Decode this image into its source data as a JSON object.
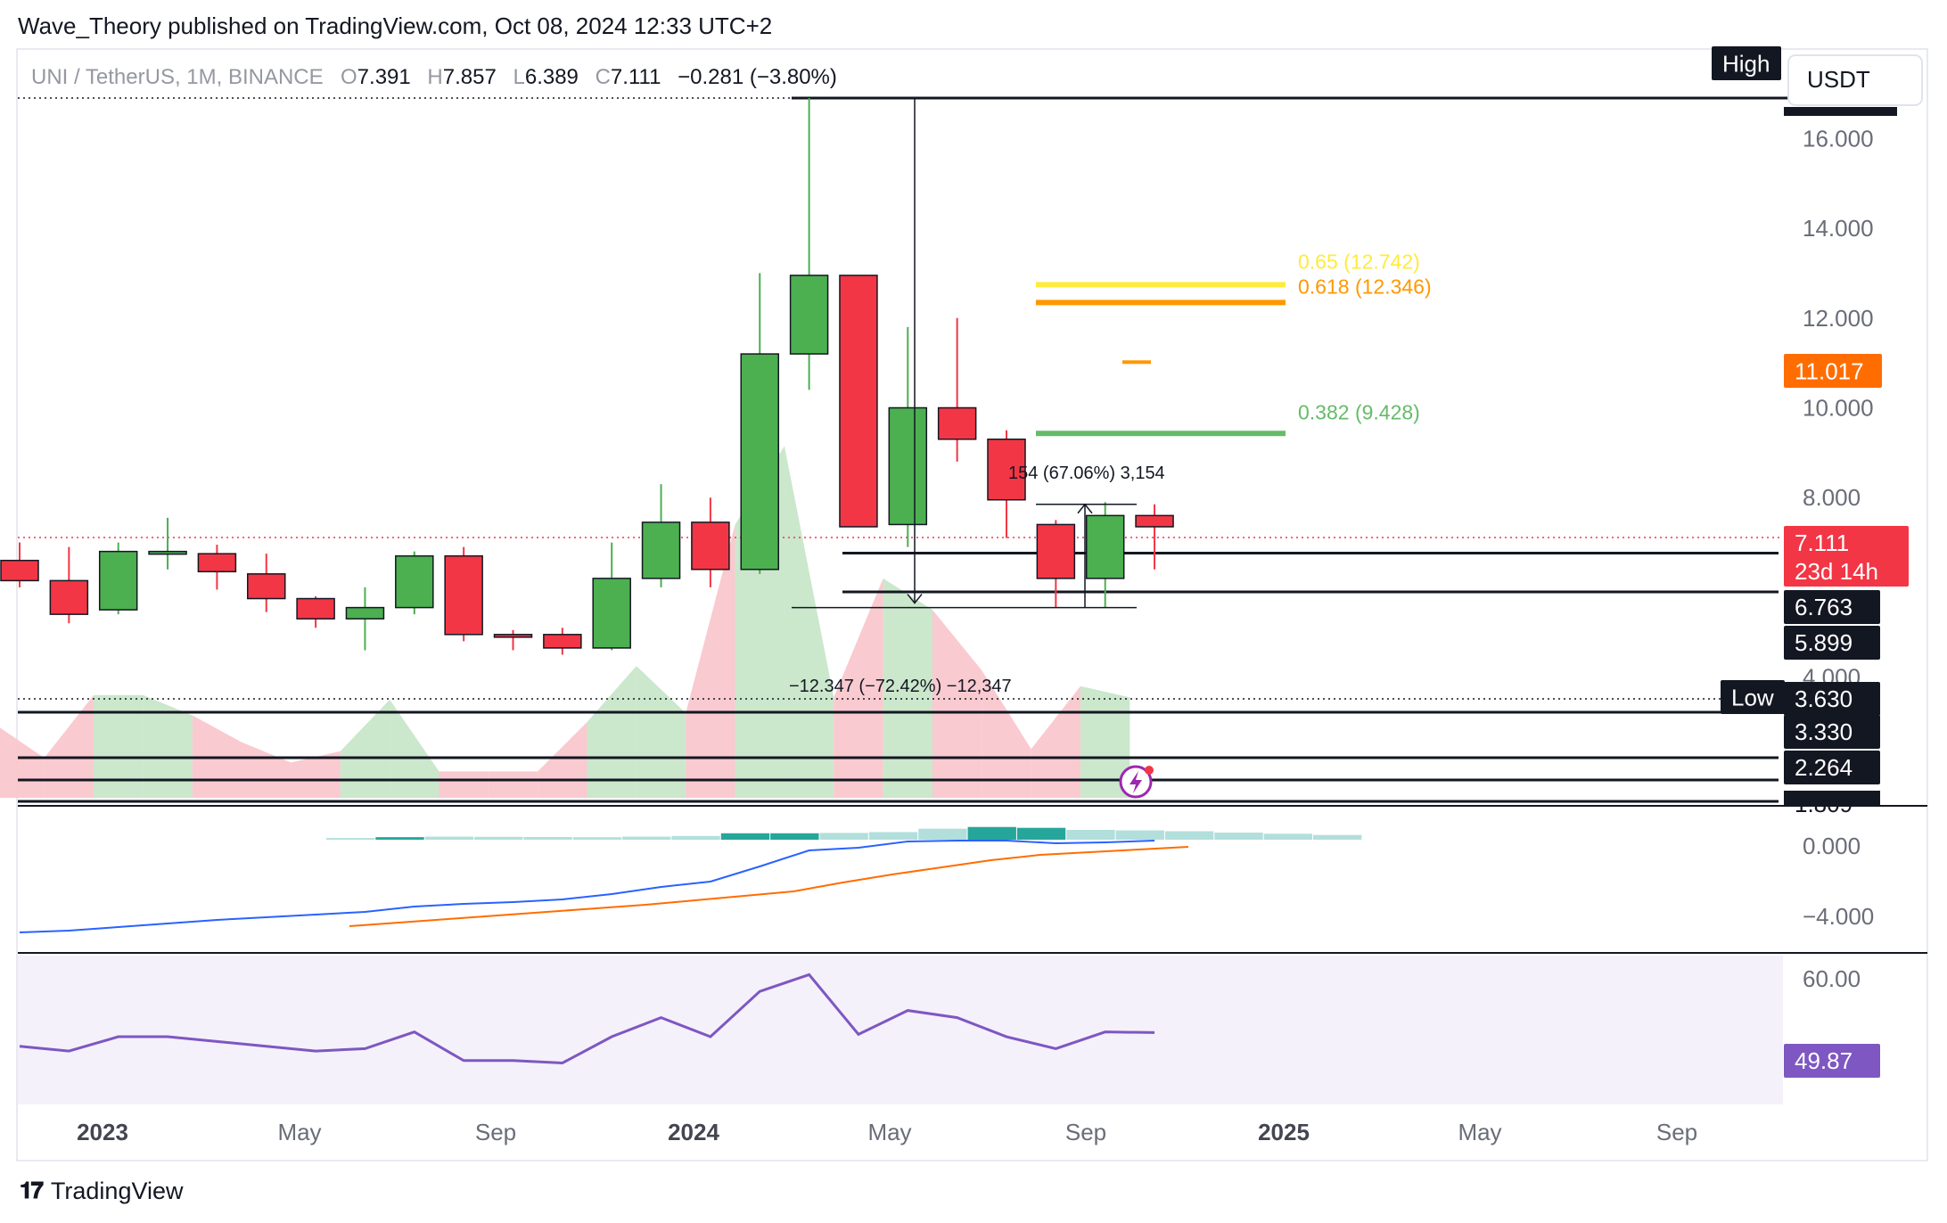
{
  "header": {
    "published_by": "Wave_Theory published on TradingView.com, Oct 08, 2024 12:33 UTC+2"
  },
  "symbol_bar": {
    "symbol": "UNI / TetherUS, 1M, BINANCE",
    "o_label": "O",
    "o_value": "7.391",
    "h_label": "H",
    "h_value": "7.857",
    "l_label": "L",
    "l_value": "6.389",
    "c_label": "C",
    "c_value": "7.111",
    "change": "−0.281 (−3.80%)"
  },
  "currency": "USDT",
  "price_axis": {
    "ticks": [
      "16.000",
      "14.000",
      "12.000",
      "10.000",
      "8.000",
      "4.000"
    ]
  },
  "macd_axis": {
    "ticks": [
      "0.000",
      "−4.000"
    ]
  },
  "rsi_axis": {
    "ticks": [
      "60.00"
    ]
  },
  "time_axis": {
    "ticks": [
      "2023",
      "May",
      "Sep",
      "2024",
      "May",
      "Sep",
      "2025",
      "May",
      "Sep"
    ]
  },
  "badges": {
    "high": "High",
    "low": "Low",
    "current_price": "7.111",
    "countdown": "23d 14h",
    "orange": "11.017",
    "levels": [
      "6.763",
      "5.899",
      "3.630",
      "3.330",
      "2.264",
      "1.809"
    ],
    "rsi_value": "49.87"
  },
  "annotations": {
    "measure_up": "154 (67.06%) 3,154",
    "measure_down": "−12.347 (−72.42%) −12,347",
    "fib_065": "0.65 (12.742)",
    "fib_0618": "0.618 (12.346)",
    "fib_0382": "0.382 (9.428)"
  },
  "colors": {
    "up": "#4caf50",
    "down": "#f23645",
    "fib_065": "#ffeb3b",
    "fib_0618": "#ff9800",
    "fib_0382": "#66bb6a",
    "macd": "#2962ff",
    "signal": "#ff6d00",
    "rsi": "#7e57c2"
  },
  "footer": {
    "brand": "TradingView"
  },
  "chart_data": {
    "type": "candlestick",
    "ylim": [
      1.809,
      16.9
    ],
    "candles": [
      {
        "t": "2022-10",
        "o": 6.6,
        "h": 7.0,
        "l": 6.0,
        "c": 6.15
      },
      {
        "t": "2022-11",
        "o": 6.15,
        "h": 6.9,
        "l": 5.2,
        "c": 5.4
      },
      {
        "t": "2022-12",
        "o": 5.5,
        "h": 7.0,
        "l": 5.4,
        "c": 6.8
      },
      {
        "t": "2023-01",
        "o": 6.8,
        "h": 7.55,
        "l": 6.4,
        "c": 6.8
      },
      {
        "t": "2023-02",
        "o": 6.75,
        "h": 6.95,
        "l": 5.95,
        "c": 6.35
      },
      {
        "t": "2023-03",
        "o": 6.3,
        "h": 6.75,
        "l": 5.45,
        "c": 5.75
      },
      {
        "t": "2023-04",
        "o": 5.75,
        "h": 5.8,
        "l": 5.1,
        "c": 5.3
      },
      {
        "t": "2023-05",
        "o": 5.3,
        "h": 6.0,
        "l": 4.6,
        "c": 5.55
      },
      {
        "t": "2023-06",
        "o": 5.55,
        "h": 6.8,
        "l": 5.4,
        "c": 6.7
      },
      {
        "t": "2023-07",
        "o": 6.7,
        "h": 6.9,
        "l": 4.8,
        "c": 4.95
      },
      {
        "t": "2023-08",
        "o": 4.95,
        "h": 5.05,
        "l": 4.6,
        "c": 4.9
      },
      {
        "t": "2023-09",
        "o": 4.95,
        "h": 5.1,
        "l": 4.5,
        "c": 4.65
      },
      {
        "t": "2023-10",
        "o": 4.65,
        "h": 7.0,
        "l": 4.6,
        "c": 6.2
      },
      {
        "t": "2023-11",
        "o": 6.2,
        "h": 8.3,
        "l": 6.0,
        "c": 7.45
      },
      {
        "t": "2023-12",
        "o": 7.45,
        "h": 8.0,
        "l": 6.0,
        "c": 6.4
      },
      {
        "t": "2024-01",
        "o": 6.4,
        "h": 13.0,
        "l": 6.3,
        "c": 11.2
      },
      {
        "t": "2024-02",
        "o": 11.2,
        "h": 16.9,
        "l": 10.4,
        "c": 12.95
      },
      {
        "t": "2024-03",
        "o": 12.95,
        "h": 12.95,
        "l": 7.35,
        "c": 7.35
      },
      {
        "t": "2024-04",
        "o": 7.4,
        "h": 11.8,
        "l": 6.9,
        "c": 10.0
      },
      {
        "t": "2024-05",
        "o": 10.0,
        "h": 12.0,
        "l": 8.8,
        "c": 9.3
      },
      {
        "t": "2024-06",
        "o": 9.3,
        "h": 9.5,
        "l": 7.1,
        "c": 7.95
      },
      {
        "t": "2024-07",
        "o": 7.4,
        "h": 7.5,
        "l": 5.55,
        "c": 6.2
      },
      {
        "t": "2024-08",
        "o": 6.2,
        "h": 7.9,
        "l": 5.55,
        "c": 7.6
      },
      {
        "t": "2024-09",
        "o": 7.6,
        "h": 7.85,
        "l": 6.4,
        "c": 7.35
      }
    ],
    "levels": [
      6.763,
      5.899,
      3.63,
      3.33,
      2.264,
      1.809
    ],
    "high": 16.9,
    "low": 3.63,
    "current": 7.111,
    "orange_level": 11.017,
    "fibonacci": [
      {
        "ratio": 0.65,
        "value": 12.742
      },
      {
        "ratio": 0.618,
        "value": 12.346
      },
      {
        "ratio": 0.382,
        "value": 9.428
      }
    ],
    "macd": {
      "ylim": [
        -6.2,
        1.6
      ],
      "histogram": [
        0.1,
        0.15,
        0.18,
        0.17,
        0.16,
        0.15,
        0.18,
        0.22,
        0.38,
        0.38,
        0.4,
        0.45,
        0.65,
        0.75,
        0.7,
        0.58,
        0.55,
        0.5,
        0.42,
        0.35,
        0.28
      ],
      "macd_line": [
        -5.2,
        -5.1,
        -4.9,
        -4.7,
        -4.5,
        -4.35,
        -4.2,
        -4.05,
        -3.75,
        -3.6,
        -3.5,
        -3.35,
        -3.05,
        -2.65,
        -2.35,
        -1.5,
        -0.6,
        -0.45,
        -0.1,
        -0.05,
        -0.05,
        -0.2,
        -0.15,
        -0.05
      ],
      "signal_line": [
        -4.85,
        -4.65,
        -4.45,
        -4.25,
        -4.05,
        -3.85,
        -3.65,
        -3.4,
        -3.15,
        -2.9,
        -2.4,
        -1.95,
        -1.55,
        -1.15,
        -0.85,
        -0.7,
        -0.55,
        -0.4
      ]
    },
    "rsi": {
      "ylim": [
        35,
        66
      ],
      "values": [
        47,
        46,
        49,
        49,
        48,
        47,
        46,
        46.5,
        50,
        44,
        44,
        43.5,
        49,
        53,
        49,
        58.5,
        62,
        49.5,
        54.5,
        53,
        49,
        46.5,
        50,
        49.87
      ]
    }
  }
}
